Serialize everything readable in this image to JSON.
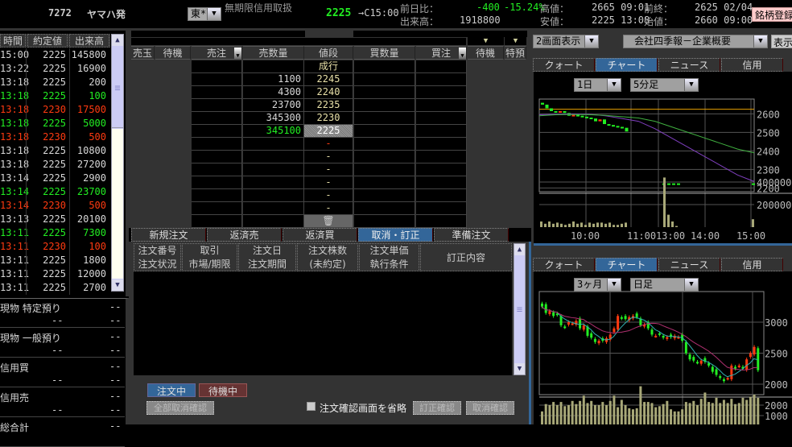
{
  "header": {
    "code": "7272",
    "name": "ヤマハ発",
    "market": "東*",
    "margin": "無期限信用取扱",
    "price": "2225",
    "price_arrow": "→C15:00",
    "prev_diff_label": "前日比：",
    "prev_diff": "-400",
    "prev_pct": "-15.24%",
    "volume_label": "出来高：",
    "volume": "1918800",
    "high_label": "高値：",
    "high": "2665 09:01",
    "low_label": "安値：",
    "low": "2225 13:08",
    "prev_close_label": "前終：",
    "prev_close": "2625 02/04",
    "open_label": "始値：",
    "open": "2660 09:00",
    "register": "銘柄登録"
  },
  "trades": {
    "headers": [
      "時間",
      "約定値",
      "出来高"
    ],
    "rows": [
      [
        "15:00",
        "2225",
        "145800",
        "w"
      ],
      [
        "13:22",
        "2225",
        "16900",
        "w"
      ],
      [
        "13:18",
        "2225",
        "200",
        "w"
      ],
      [
        "13:18",
        "2225",
        "100",
        "g"
      ],
      [
        "13:18",
        "2230",
        "17500",
        "r"
      ],
      [
        "13:18",
        "2225",
        "5000",
        "g"
      ],
      [
        "13:18",
        "2230",
        "500",
        "r"
      ],
      [
        "13:18",
        "2225",
        "10800",
        "w"
      ],
      [
        "13:18",
        "2225",
        "27200",
        "w"
      ],
      [
        "13:14",
        "2225",
        "2900",
        "w"
      ],
      [
        "13:14",
        "2225",
        "23700",
        "g"
      ],
      [
        "13:14",
        "2230",
        "500",
        "r"
      ],
      [
        "13:13",
        "2225",
        "20100",
        "w"
      ],
      [
        "13:11",
        "2225",
        "7300",
        "g"
      ],
      [
        "13:11",
        "2230",
        "100",
        "r"
      ],
      [
        "13:11",
        "2225",
        "1800",
        "w"
      ],
      [
        "13:11",
        "2225",
        "12000",
        "w"
      ],
      [
        "13:11",
        "2225",
        "2700",
        "w"
      ]
    ]
  },
  "holdings": [
    {
      "label": "現物 特定預り",
      "v1": "--",
      "v2": "--",
      "v3": "--"
    },
    {
      "label": "現物 一般預り",
      "v1": "--",
      "v2": "--",
      "v3": "--"
    },
    {
      "label": "信用買",
      "v1": "--",
      "v2": "--",
      "v3": "--"
    },
    {
      "label": "信用売",
      "v1": "--",
      "v2": "--",
      "v3": "--"
    },
    {
      "label": "総合計",
      "v1": "--"
    }
  ],
  "board": {
    "headers": [
      "売玉",
      "待機",
      "売注",
      "売数量",
      "値段",
      "買数量",
      "買注",
      "待機",
      "特預"
    ],
    "rows": [
      [
        "",
        "成行"
      ],
      [
        "1100",
        "2245"
      ],
      [
        "4300",
        "2240"
      ],
      [
        "23700",
        "2235"
      ],
      [
        "345300",
        "2230"
      ],
      [
        "345100",
        "2225"
      ],
      [
        "",
        "-"
      ],
      [
        "",
        "-"
      ],
      [
        "",
        "-"
      ],
      [
        "",
        "-"
      ],
      [
        "",
        "-"
      ],
      [
        "",
        "-"
      ]
    ]
  },
  "order_tabs": [
    "新規注文",
    "返済売",
    "返済買",
    "取消・訂正",
    "準備注文"
  ],
  "order_tab_active": 3,
  "order_headers": [
    [
      "注文番号",
      "注文状況"
    ],
    [
      "取引",
      "市場/期限"
    ],
    [
      "注文日",
      "注文期間"
    ],
    [
      "注文株数",
      "(未約定)"
    ],
    [
      "注文単価",
      "執行条件"
    ],
    [
      "訂正内容",
      ""
    ]
  ],
  "order_footer": {
    "active": "注文中",
    "waiting": "待機中",
    "cancel_all": "全部取消確認",
    "skip_confirm": "注文確認画面を省略",
    "modify": "訂正確認",
    "cancel": "取消確認"
  },
  "right": {
    "layout_select": "2画面表示",
    "info_select": "会社四季報－企業概要",
    "show": "表示",
    "tabs": [
      "クォート",
      "チャート",
      "ニュース",
      "信用"
    ],
    "active_tab": 1
  },
  "chart1": {
    "period": "1日",
    "interval": "5分足"
  },
  "chart2": {
    "period": "3ヶ月",
    "interval": "日足"
  },
  "chart_data": [
    {
      "type": "candlestick",
      "title": "",
      "x_ticks": [
        "10:00",
        "11:00",
        "13:00",
        "14:00",
        "15:00"
      ],
      "y_ticks": [
        "2600",
        "2500",
        "2400",
        "2300",
        "2200"
      ],
      "ylim": [
        2180,
        2680
      ],
      "vol_ticks": [
        "400000",
        "200000"
      ],
      "reference_line": 2625,
      "closes": [
        2650,
        2630,
        2615,
        2610,
        2615,
        2605,
        2590,
        2595,
        2590,
        2585,
        2580,
        2575,
        2560,
        2570,
        2545,
        2540,
        2535,
        2530,
        2525,
        2505
      ],
      "afternoon_closes": [
        2225,
        2225,
        2225,
        2225
      ],
      "last_close": 2225,
      "ma_short": [
        2595,
        2598,
        2600,
        2598,
        2590,
        2575,
        2560,
        2520,
        2470,
        2420,
        2370,
        2320,
        2270,
        2235
      ],
      "ma_long": [
        2590,
        2595,
        2597,
        2596,
        2592,
        2585,
        2578,
        2560,
        2530,
        2500,
        2470,
        2440,
        2410,
        2390
      ],
      "volumes": [
        50000,
        30000,
        50000,
        30000,
        40000,
        30000,
        20000,
        30000,
        50000,
        30000,
        40000,
        20000,
        40000,
        30000,
        40000,
        40000,
        30000,
        40000,
        20000,
        20000,
        30000,
        40000
      ],
      "afternoon_volumes": [
        440000,
        110000,
        50000,
        10000
      ],
      "last_volume": 70000
    },
    {
      "type": "candlestick",
      "x_ticks": [],
      "y_ticks": [
        "3000",
        "2500",
        "2000"
      ],
      "ylim": [
        1900,
        3350
      ],
      "vol_ticks": [
        "2000",
        "1000"
      ],
      "closes": [
        3250,
        3150,
        3180,
        3100,
        3120,
        2950,
        2920,
        3000,
        2980,
        3020,
        2900,
        2950,
        2780,
        2750,
        2680,
        2700,
        2700,
        2740,
        2800,
        2900,
        3100,
        3060,
        3050,
        3080,
        3100,
        3080,
        2950,
        2960,
        2900,
        2800,
        2780,
        2800,
        2750,
        2760,
        2760,
        2780,
        2760,
        2700,
        2500,
        2400,
        2380,
        2350,
        2380,
        2360,
        2300,
        2200,
        2150,
        2100,
        2050,
        2100,
        2300,
        2250,
        2300,
        2250,
        2400,
        2500,
        2600,
        2225
      ],
      "volumes": [
        1400,
        2100,
        2000,
        2300,
        2000,
        2300,
        1900,
        2000,
        2400,
        2100,
        2400,
        2900,
        2200,
        2400,
        2000,
        2000,
        2300,
        2000,
        2400,
        2900,
        1800,
        2500,
        2000,
        1700,
        1600,
        1700,
        3800,
        2300,
        2300,
        2200,
        1800,
        1900,
        2100,
        2400,
        1600,
        1400,
        1400,
        1600,
        2300,
        2200,
        2400,
        2000,
        2600,
        3200,
        2300,
        2200,
        2700,
        2200,
        2500,
        2200,
        2600,
        2100,
        2200,
        2700,
        2500,
        2800,
        3000,
        2700
      ]
    }
  ]
}
